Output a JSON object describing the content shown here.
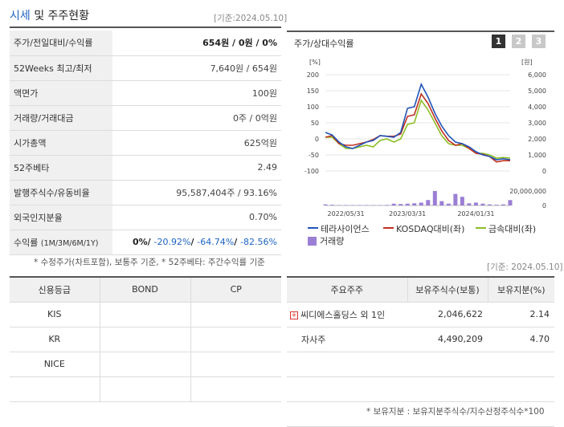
{
  "header": {
    "title_main": "시세",
    "title_rest": " 및 주주현황",
    "asof": "[기준:2024.05.10]"
  },
  "quote_table": [
    {
      "label": "주가/전일대비/수익률",
      "value_bold": "654",
      "value_rest": "원 / 0원 / 0%"
    },
    {
      "label": "52Weeks 최고/최저",
      "value": "7,640원 / 654원"
    },
    {
      "label": "액면가",
      "value": "100원"
    },
    {
      "label": "거래량/거래대금",
      "value": "0주 / 0억원"
    },
    {
      "label": "시가총액",
      "value": "625억원"
    },
    {
      "label": "52주베타",
      "value": "2.49"
    },
    {
      "label": "발행주식수/유동비율",
      "value": "95,587,404주 / 93.16%"
    },
    {
      "label": "외국인지분율",
      "value": "0.70%"
    }
  ],
  "returns_row": {
    "label": "수익률",
    "label_small": "(1M/3M/6M/1Y)",
    "v1": "0%",
    "v2": "-20.92%",
    "v3": "-64.74%",
    "v4": "-82.56%"
  },
  "footnote1": "* 수정주가(차트포함), 보통주 기준, * 52주베타: 주간수익률 기준",
  "chart_panel": {
    "title": "주가/상대수익률",
    "pages": [
      "1",
      "2",
      "3"
    ],
    "active_page": "1"
  },
  "chart_data": {
    "type": "line",
    "left_axis_unit": "[%]",
    "right_axis_unit": "[원]",
    "left_ticks": [
      "200",
      "150",
      "100",
      "50",
      "0",
      "-50",
      "-100"
    ],
    "right_ticks": [
      "6,000",
      "5,000",
      "4,000",
      "3,000",
      "2,000",
      "1,000",
      "0"
    ],
    "volume_tick": "20,000,000",
    "volume_zero": "0",
    "ylim_left": [
      -100,
      200
    ],
    "x_labels": [
      "2022/05/31",
      "2023/03/31",
      "2024/01/31"
    ],
    "x": [
      0,
      1,
      2,
      3,
      4,
      5,
      6,
      7,
      8,
      9,
      10,
      11,
      12,
      13,
      14,
      15,
      16,
      17,
      18,
      19,
      20,
      21,
      22,
      23,
      24,
      25,
      26,
      27
    ],
    "series": [
      {
        "name": "테라사이언스",
        "color": "#2255b8",
        "values": [
          20,
          12,
          -10,
          -25,
          -30,
          -20,
          -10,
          -5,
          10,
          8,
          5,
          20,
          95,
          100,
          170,
          130,
          80,
          40,
          10,
          -10,
          -15,
          -25,
          -40,
          -50,
          -55,
          -65,
          -62,
          -65
        ]
      },
      {
        "name": "KOSDAQ대비(좌)",
        "color": "#c03020",
        "values": [
          5,
          10,
          -15,
          -20,
          -20,
          -15,
          -10,
          -2,
          10,
          8,
          8,
          15,
          70,
          75,
          140,
          110,
          65,
          25,
          -5,
          -20,
          -15,
          -30,
          -45,
          -48,
          -55,
          -72,
          -68,
          -68
        ]
      },
      {
        "name": "금속대비(좌)",
        "color": "#8cbf26",
        "values": [
          5,
          5,
          -15,
          -30,
          -30,
          -25,
          -20,
          -25,
          -5,
          0,
          -10,
          0,
          45,
          50,
          120,
          90,
          50,
          10,
          -15,
          -20,
          -20,
          -30,
          -45,
          -45,
          -50,
          -60,
          -58,
          -60
        ]
      }
    ],
    "volume": {
      "name": "거래량",
      "color": "#9b7fd4",
      "values": [
        0.3,
        0.2,
        0.1,
        0.1,
        0.1,
        0.1,
        0.1,
        0.1,
        0.1,
        0.15,
        0.5,
        0.4,
        0.5,
        0.6,
        0.8,
        1.5,
        4.0,
        1.2,
        0.5,
        3.2,
        2.4,
        0.6,
        0.8,
        0.5,
        0.3,
        0.2,
        0.3,
        1.5
      ]
    }
  },
  "legend": [
    {
      "label": "테라사이언스",
      "color": "#2255b8",
      "kind": "line"
    },
    {
      "label": "KOSDAQ대비(좌)",
      "color": "#c03020",
      "kind": "line"
    },
    {
      "label": "금속대비(좌)",
      "color": "#8cbf26",
      "kind": "line"
    },
    {
      "label": "거래량",
      "color": "#9b7fd4",
      "kind": "box"
    }
  ],
  "asof2": "[기준: 2024.05.10]",
  "credit_table": {
    "headers": [
      "신용등급",
      "BOND",
      "CP"
    ],
    "rows": [
      [
        "KIS",
        "",
        ""
      ],
      [
        "KR",
        "",
        ""
      ],
      [
        "NICE",
        "",
        ""
      ],
      [
        "",
        "",
        ""
      ]
    ]
  },
  "holder_table": {
    "headers": [
      "주요주주",
      "보유주식수(보통)",
      "보유지분(%)"
    ],
    "rows": [
      {
        "name": "씨디에스홀딩스 외 1인",
        "shares": "2,046,622",
        "pct": "2.14",
        "expand": true
      },
      {
        "name": "자사주",
        "shares": "4,490,209",
        "pct": "4.70",
        "expand": false
      },
      {
        "name": "",
        "shares": "",
        "pct": "",
        "expand": false
      },
      {
        "name": "",
        "shares": "",
        "pct": "",
        "expand": false
      },
      {
        "name": "",
        "shares": "",
        "pct": "",
        "expand": false
      }
    ]
  },
  "footnote2": "* 보유지분 : 보유지분주식수/지수산정주식수*100"
}
